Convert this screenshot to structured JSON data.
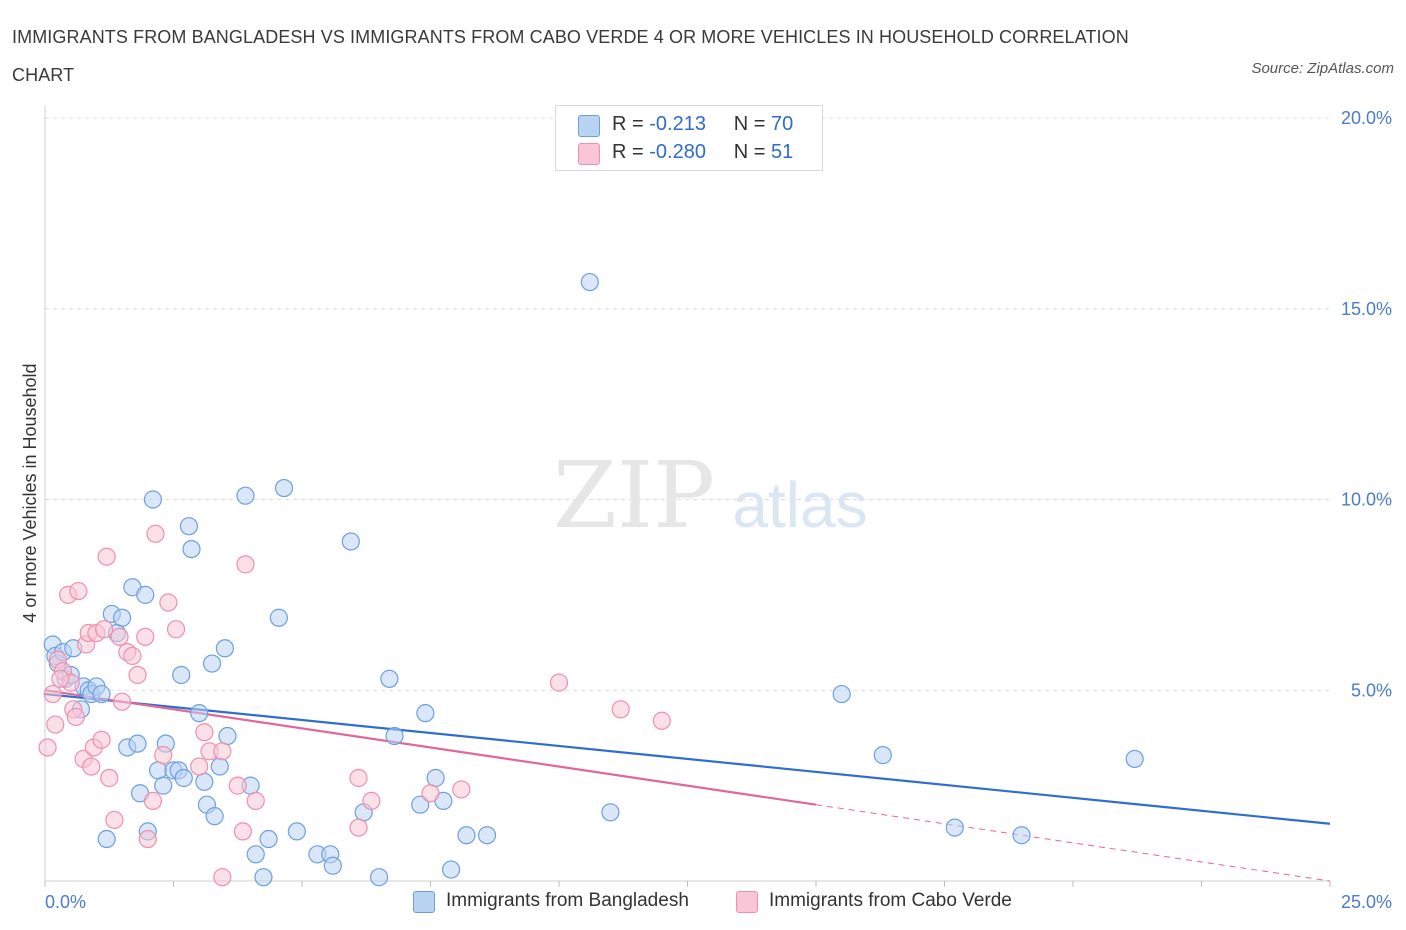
{
  "title": "IMMIGRANTS FROM BANGLADESH VS IMMIGRANTS FROM CABO VERDE 4 OR MORE VEHICLES IN HOUSEHOLD CORRELATION CHART",
  "source": "Source: ZipAtlas.com",
  "watermark": {
    "zip": "ZIP",
    "atlas": "atlas"
  },
  "colors": {
    "bangladesh_fill": "#b9d3f3",
    "bangladesh_stroke": "#6d9fe0",
    "bangladesh_line": "#2f6fcc",
    "caboverde_fill": "#f8c6d6",
    "caboverde_stroke": "#ee8fae",
    "caboverde_line": "#e0679a",
    "grid": "#dcdcdc",
    "tick_label": "#4a7cc7"
  },
  "legend": {
    "rows": [
      {
        "r_label": "R = ",
        "r_value": "-0.213",
        "n_label": "N = ",
        "n_value": "70"
      },
      {
        "r_label": "R = ",
        "r_value": "-0.280",
        "n_label": "N = ",
        "n_value": "51"
      }
    ]
  },
  "chart_data": {
    "type": "scatter",
    "title": "IMMIGRANTS FROM BANGLADESH VS IMMIGRANTS FROM CABO VERDE 4 OR MORE VEHICLES IN HOUSEHOLD CORRELATION CHART",
    "xlabel": "",
    "ylabel": "4 or more Vehicles in Household",
    "xlim": [
      0,
      25
    ],
    "ylim": [
      0,
      20
    ],
    "x_tick_labels": [
      {
        "value": 0,
        "label": "0.0%"
      },
      {
        "value": 25,
        "label": "25.0%"
      }
    ],
    "y_tick_labels": [
      {
        "value": 5,
        "label": "5.0%"
      },
      {
        "value": 10,
        "label": "10.0%"
      },
      {
        "value": 15,
        "label": "15.0%"
      },
      {
        "value": 20,
        "label": "20.0%"
      }
    ],
    "grid": true,
    "legend_position": "bottom",
    "series": [
      {
        "name": "Immigrants from Bangladesh",
        "R": -0.213,
        "N": 70,
        "trend": {
          "x": [
            0,
            25
          ],
          "y": [
            4.9,
            1.5
          ]
        },
        "points": [
          [
            0.15,
            6.2
          ],
          [
            0.2,
            5.9
          ],
          [
            0.25,
            5.7
          ],
          [
            0.35,
            6.0
          ],
          [
            0.4,
            5.3
          ],
          [
            0.5,
            5.4
          ],
          [
            0.55,
            6.1
          ],
          [
            0.7,
            4.5
          ],
          [
            0.75,
            5.1
          ],
          [
            0.85,
            5.0
          ],
          [
            0.9,
            4.9
          ],
          [
            1.0,
            5.1
          ],
          [
            1.1,
            4.9
          ],
          [
            1.2,
            1.1
          ],
          [
            1.3,
            7.0
          ],
          [
            1.4,
            6.5
          ],
          [
            1.5,
            6.9
          ],
          [
            1.6,
            3.5
          ],
          [
            1.7,
            7.7
          ],
          [
            1.8,
            3.6
          ],
          [
            1.85,
            2.3
          ],
          [
            1.95,
            7.5
          ],
          [
            2.0,
            1.3
          ],
          [
            2.1,
            10.0
          ],
          [
            2.2,
            2.9
          ],
          [
            2.3,
            2.5
          ],
          [
            2.35,
            3.6
          ],
          [
            2.5,
            2.9
          ],
          [
            2.6,
            2.9
          ],
          [
            2.65,
            5.4
          ],
          [
            2.7,
            2.7
          ],
          [
            2.8,
            9.3
          ],
          [
            2.85,
            8.7
          ],
          [
            3.0,
            4.4
          ],
          [
            3.1,
            2.6
          ],
          [
            3.15,
            2.0
          ],
          [
            3.25,
            5.7
          ],
          [
            3.3,
            1.7
          ],
          [
            3.4,
            3.0
          ],
          [
            3.5,
            6.1
          ],
          [
            3.55,
            3.8
          ],
          [
            3.9,
            10.1
          ],
          [
            4.0,
            2.5
          ],
          [
            4.1,
            0.7
          ],
          [
            4.25,
            0.1
          ],
          [
            4.35,
            1.1
          ],
          [
            4.55,
            6.9
          ],
          [
            4.65,
            10.3
          ],
          [
            4.9,
            1.3
          ],
          [
            5.3,
            0.7
          ],
          [
            5.55,
            0.7
          ],
          [
            5.6,
            0.4
          ],
          [
            5.95,
            8.9
          ],
          [
            6.2,
            1.8
          ],
          [
            6.5,
            0.1
          ],
          [
            6.7,
            5.3
          ],
          [
            6.8,
            3.8
          ],
          [
            7.3,
            2.0
          ],
          [
            7.4,
            4.4
          ],
          [
            7.6,
            2.7
          ],
          [
            7.75,
            2.1
          ],
          [
            7.9,
            0.3
          ],
          [
            8.2,
            1.2
          ],
          [
            8.6,
            1.2
          ],
          [
            10.6,
            15.7
          ],
          [
            11.0,
            1.8
          ],
          [
            15.5,
            4.9
          ],
          [
            16.3,
            3.3
          ],
          [
            17.7,
            1.4
          ],
          [
            19.0,
            1.2
          ],
          [
            21.2,
            3.2
          ]
        ]
      },
      {
        "name": "Immigrants from Cabo Verde",
        "R": -0.28,
        "N": 51,
        "trend": {
          "x": [
            0,
            15
          ],
          "y": [
            5.0,
            2.0
          ]
        },
        "trend_extension": {
          "x": [
            15,
            25
          ],
          "y": [
            2.0,
            0.0
          ]
        },
        "points": [
          [
            0.05,
            3.5
          ],
          [
            0.15,
            4.9
          ],
          [
            0.2,
            4.1
          ],
          [
            0.25,
            5.8
          ],
          [
            0.35,
            5.5
          ],
          [
            0.45,
            7.5
          ],
          [
            0.5,
            5.2
          ],
          [
            0.55,
            4.5
          ],
          [
            0.6,
            4.3
          ],
          [
            0.65,
            7.6
          ],
          [
            0.75,
            3.2
          ],
          [
            0.8,
            6.2
          ],
          [
            0.85,
            6.5
          ],
          [
            0.9,
            3.0
          ],
          [
            0.95,
            3.5
          ],
          [
            1.0,
            6.5
          ],
          [
            1.1,
            3.7
          ],
          [
            1.15,
            6.6
          ],
          [
            1.2,
            8.5
          ],
          [
            1.25,
            2.7
          ],
          [
            1.35,
            1.6
          ],
          [
            1.45,
            6.4
          ],
          [
            1.5,
            4.7
          ],
          [
            1.6,
            6.0
          ],
          [
            1.7,
            5.9
          ],
          [
            1.8,
            5.4
          ],
          [
            1.95,
            6.4
          ],
          [
            2.0,
            1.1
          ],
          [
            2.1,
            2.1
          ],
          [
            2.15,
            9.1
          ],
          [
            2.3,
            3.3
          ],
          [
            2.4,
            7.3
          ],
          [
            2.55,
            6.6
          ],
          [
            3.0,
            3.0
          ],
          [
            3.1,
            3.9
          ],
          [
            3.2,
            3.4
          ],
          [
            3.45,
            0.1
          ],
          [
            3.45,
            3.4
          ],
          [
            3.75,
            2.5
          ],
          [
            3.85,
            1.3
          ],
          [
            3.9,
            8.3
          ],
          [
            4.1,
            2.1
          ],
          [
            6.1,
            1.4
          ],
          [
            6.1,
            2.7
          ],
          [
            6.35,
            2.1
          ],
          [
            7.5,
            2.3
          ],
          [
            8.1,
            2.4
          ],
          [
            10.0,
            5.2
          ],
          [
            11.2,
            4.5
          ],
          [
            12.0,
            4.2
          ],
          [
            0.3,
            5.3
          ]
        ]
      }
    ]
  }
}
